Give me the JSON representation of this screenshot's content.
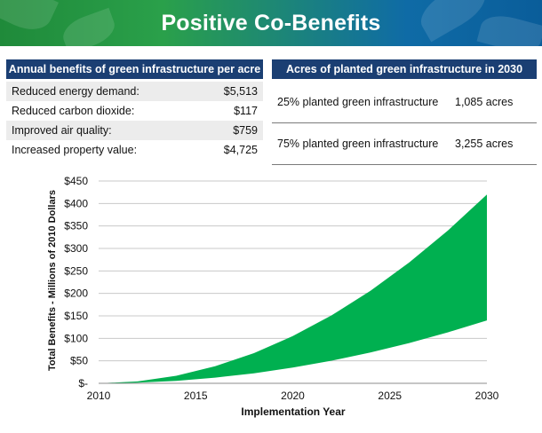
{
  "banner": {
    "title": "Positive Co-Benefits"
  },
  "benefits_table": {
    "header": "Annual benefits of green infrastructure per acre",
    "rows": [
      {
        "label": "Reduced energy demand:",
        "value": "$5,513"
      },
      {
        "label": "Reduced carbon dioxide:",
        "value": "$117"
      },
      {
        "label": "Improved air quality:",
        "value": "$759"
      },
      {
        "label": "Increased property value:",
        "value": "$4,725"
      }
    ]
  },
  "acres_table": {
    "header": "Acres of planted green infrastructure in 2030",
    "rows": [
      {
        "label": "25% planted green infrastructure",
        "value": "1,085 acres"
      },
      {
        "label": "75% planted green infrastructure",
        "value": "3,255 acres"
      }
    ]
  },
  "colors": {
    "banner_green": "#2aa04a",
    "banner_blue": "#0a5d9a",
    "header_navy": "#1b3f73",
    "area_fill": "#00b050"
  },
  "chart_data": {
    "type": "area",
    "xlabel": "Implementation Year",
    "ylabel": "Total Benefits - Millions of 2010 Dollars",
    "xlim": [
      2010,
      2030
    ],
    "ylim": [
      0,
      450
    ],
    "x_ticks": [
      2010,
      2015,
      2020,
      2025,
      2030
    ],
    "x_tick_labels": [
      "2010",
      "2015",
      "2020",
      "2025",
      "2030"
    ],
    "y_ticks": [
      0,
      50,
      100,
      150,
      200,
      250,
      300,
      350,
      400,
      450
    ],
    "y_tick_labels": [
      "$-",
      "$50",
      "$100",
      "$150",
      "$200",
      "$250",
      "$300",
      "$350",
      "$400",
      "$450"
    ],
    "grid": true,
    "x": [
      2010,
      2012,
      2014,
      2016,
      2018,
      2020,
      2022,
      2024,
      2026,
      2028,
      2030
    ],
    "series": [
      {
        "values": [
          0,
          1.4,
          5.6,
          12.6,
          22.4,
          35,
          50.4,
          68.6,
          89.6,
          113.4,
          140
        ]
      },
      {
        "values": [
          0,
          4.2,
          16.8,
          37.8,
          67.2,
          105,
          151.2,
          205.8,
          268.8,
          340.2,
          420
        ]
      }
    ]
  }
}
